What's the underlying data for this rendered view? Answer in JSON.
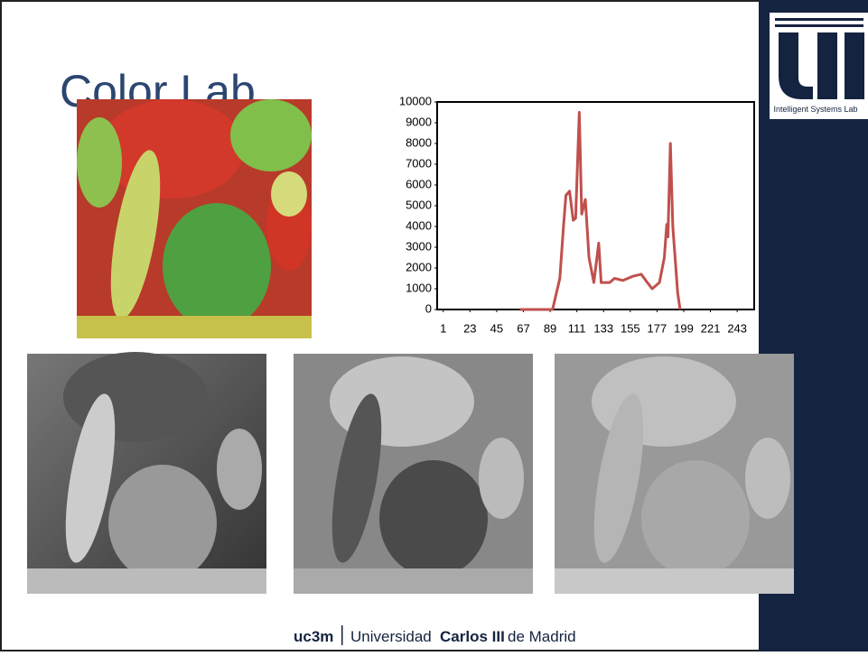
{
  "title": "Color Lab",
  "logo": {
    "text": "Intelligent Systems Lab"
  },
  "footer": {
    "short": "uc3m",
    "name_start": "Universidad",
    "name_bold": "Carlos III",
    "name_end": "de Madrid"
  },
  "chart_data": {
    "type": "line",
    "color": "#c0504d",
    "x": [
      64,
      91,
      97,
      100,
      102,
      105,
      108,
      110,
      113,
      115,
      118,
      121,
      125,
      129,
      131,
      138,
      142,
      149,
      157,
      164,
      169,
      173,
      179,
      183,
      185,
      186,
      188,
      190,
      194,
      196
    ],
    "values": [
      0,
      0,
      1500,
      4000,
      5500,
      5700,
      4300,
      4400,
      9500,
      4600,
      5300,
      2500,
      1300,
      3200,
      1300,
      1300,
      1500,
      1400,
      1600,
      1700,
      1300,
      1000,
      1300,
      2500,
      4100,
      3500,
      8000,
      4000,
      800,
      0
    ],
    "xlim": [
      -4,
      257
    ],
    "xticks": [
      1,
      23,
      45,
      67,
      89,
      111,
      133,
      155,
      177,
      199,
      221,
      243
    ],
    "ylim": [
      0,
      10000
    ],
    "yticks": [
      0,
      1000,
      2000,
      3000,
      4000,
      5000,
      6000,
      7000,
      8000,
      9000,
      10000
    ]
  }
}
